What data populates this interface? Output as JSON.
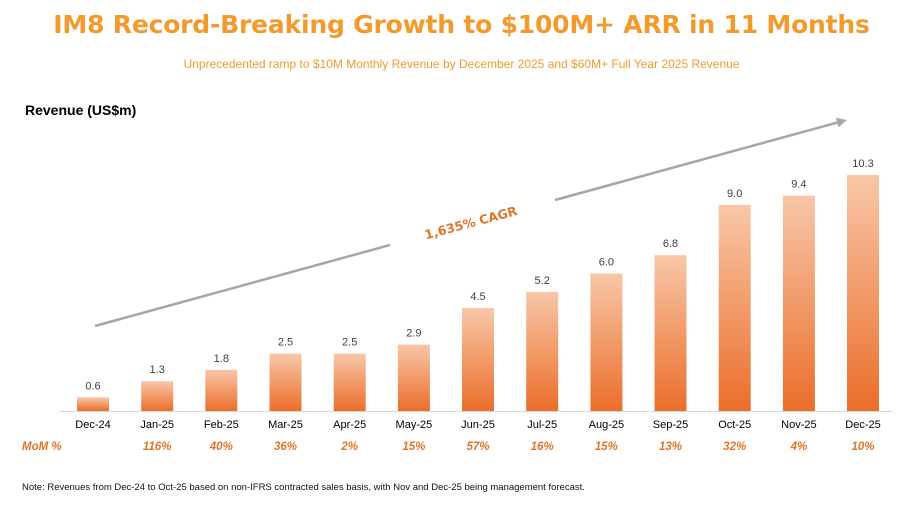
{
  "title": "IM8 Record-Breaking Growth to $100M+ ARR in 11 Months",
  "subtitle": "Unprecedented ramp to $10M Monthly Revenue by December 2025 and $60M+ Full Year 2025 Revenue",
  "note": "Note: Revenues from Dec-24 to Oct-25 based on non-IFRS contracted sales basis, with Nov and Dec-25 being management forecast.",
  "colors": {
    "accent": "#F39A2D",
    "bar_top": "#F8C7A8",
    "bar_bottom": "#EB6E2B",
    "arrow": "#A6A6A6",
    "mom_text": "#E2742A"
  },
  "chart_data": {
    "type": "bar",
    "ylabel": "Revenue (US$m)",
    "categories": [
      "Dec-24",
      "Jan-25",
      "Feb-25",
      "Mar-25",
      "Apr-25",
      "May-25",
      "Jun-25",
      "Jul-25",
      "Aug-25",
      "Sep-25",
      "Oct-25",
      "Nov-25",
      "Dec-25"
    ],
    "values": [
      0.6,
      1.3,
      1.8,
      2.5,
      2.5,
      2.9,
      4.5,
      5.2,
      6.0,
      6.8,
      9.0,
      9.4,
      10.3
    ],
    "labels": [
      "0.6",
      "1.3",
      "1.8",
      "2.5",
      "2.5",
      "2.9",
      "4.5",
      "5.2",
      "6.0",
      "6.8",
      "9.0",
      "9.4",
      "10.3"
    ],
    "mom_label": "MoM %",
    "mom": [
      "",
      "116%",
      "40%",
      "36%",
      "2%",
      "15%",
      "57%",
      "16%",
      "15%",
      "13%",
      "32%",
      "4%",
      "10%"
    ],
    "annotation": "1,635% CAGR",
    "ylim": [
      0,
      10.3
    ]
  }
}
